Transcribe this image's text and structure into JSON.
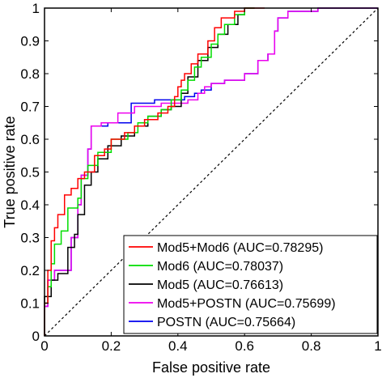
{
  "chart_data": {
    "type": "line",
    "xlabel": "False positive rate",
    "ylabel": "True positive rate",
    "xlim": [
      0,
      1
    ],
    "ylim": [
      0,
      1
    ],
    "grid": false,
    "legend_position": "bottom-right",
    "xticks": [
      "0",
      "0.2",
      "0.4",
      "0.6",
      "0.8",
      "1"
    ],
    "yticks": [
      "0",
      "0.1",
      "0.2",
      "0.3",
      "0.4",
      "0.5",
      "0.6",
      "0.7",
      "0.8",
      "0.9",
      "1"
    ],
    "reference_line": {
      "style": "dashed",
      "color": "#000000",
      "from": [
        0,
        0
      ],
      "to": [
        1,
        1
      ]
    },
    "series": [
      {
        "name": "Mod5+Mod6 (AUC=0.78295)",
        "color": "#ff0000",
        "points": [
          [
            0,
            0
          ],
          [
            0,
            0.1
          ],
          [
            0.01,
            0.1
          ],
          [
            0.01,
            0.2
          ],
          [
            0.02,
            0.2
          ],
          [
            0.02,
            0.29
          ],
          [
            0.03,
            0.29
          ],
          [
            0.03,
            0.33
          ],
          [
            0.04,
            0.33
          ],
          [
            0.04,
            0.37
          ],
          [
            0.06,
            0.37
          ],
          [
            0.06,
            0.43
          ],
          [
            0.08,
            0.43
          ],
          [
            0.08,
            0.45
          ],
          [
            0.1,
            0.45
          ],
          [
            0.1,
            0.48
          ],
          [
            0.12,
            0.48
          ],
          [
            0.12,
            0.5
          ],
          [
            0.15,
            0.5
          ],
          [
            0.15,
            0.55
          ],
          [
            0.18,
            0.55
          ],
          [
            0.18,
            0.57
          ],
          [
            0.2,
            0.57
          ],
          [
            0.2,
            0.6
          ],
          [
            0.24,
            0.6
          ],
          [
            0.24,
            0.62
          ],
          [
            0.27,
            0.62
          ],
          [
            0.27,
            0.64
          ],
          [
            0.3,
            0.64
          ],
          [
            0.3,
            0.66
          ],
          [
            0.34,
            0.66
          ],
          [
            0.34,
            0.68
          ],
          [
            0.37,
            0.68
          ],
          [
            0.37,
            0.7
          ],
          [
            0.39,
            0.7
          ],
          [
            0.39,
            0.73
          ],
          [
            0.4,
            0.73
          ],
          [
            0.4,
            0.76
          ],
          [
            0.41,
            0.76
          ],
          [
            0.41,
            0.78
          ],
          [
            0.42,
            0.78
          ],
          [
            0.42,
            0.8
          ],
          [
            0.44,
            0.8
          ],
          [
            0.44,
            0.83
          ],
          [
            0.46,
            0.83
          ],
          [
            0.46,
            0.86
          ],
          [
            0.49,
            0.86
          ],
          [
            0.49,
            0.9
          ],
          [
            0.51,
            0.9
          ],
          [
            0.51,
            0.94
          ],
          [
            0.53,
            0.94
          ],
          [
            0.53,
            0.97
          ],
          [
            0.57,
            0.97
          ],
          [
            0.57,
            0.99
          ],
          [
            0.6,
            0.99
          ],
          [
            0.6,
            1
          ],
          [
            0.66,
            1
          ]
        ]
      },
      {
        "name": "Mod6 (AUC=0.78037)",
        "color": "#00dd00",
        "points": [
          [
            0,
            0
          ],
          [
            0,
            0.1
          ],
          [
            0.01,
            0.1
          ],
          [
            0.01,
            0.15
          ],
          [
            0.02,
            0.15
          ],
          [
            0.02,
            0.22
          ],
          [
            0.03,
            0.22
          ],
          [
            0.03,
            0.28
          ],
          [
            0.05,
            0.28
          ],
          [
            0.05,
            0.32
          ],
          [
            0.07,
            0.32
          ],
          [
            0.07,
            0.39
          ],
          [
            0.1,
            0.39
          ],
          [
            0.1,
            0.42
          ],
          [
            0.11,
            0.42
          ],
          [
            0.11,
            0.48
          ],
          [
            0.13,
            0.48
          ],
          [
            0.13,
            0.52
          ],
          [
            0.16,
            0.52
          ],
          [
            0.16,
            0.56
          ],
          [
            0.2,
            0.56
          ],
          [
            0.2,
            0.6
          ],
          [
            0.25,
            0.6
          ],
          [
            0.25,
            0.62
          ],
          [
            0.28,
            0.62
          ],
          [
            0.28,
            0.65
          ],
          [
            0.31,
            0.65
          ],
          [
            0.31,
            0.67
          ],
          [
            0.35,
            0.67
          ],
          [
            0.35,
            0.69
          ],
          [
            0.38,
            0.69
          ],
          [
            0.38,
            0.72
          ],
          [
            0.41,
            0.72
          ],
          [
            0.41,
            0.75
          ],
          [
            0.43,
            0.75
          ],
          [
            0.43,
            0.78
          ],
          [
            0.45,
            0.78
          ],
          [
            0.45,
            0.82
          ],
          [
            0.47,
            0.82
          ],
          [
            0.47,
            0.85
          ],
          [
            0.5,
            0.85
          ],
          [
            0.5,
            0.89
          ],
          [
            0.52,
            0.89
          ],
          [
            0.52,
            0.92
          ],
          [
            0.54,
            0.92
          ],
          [
            0.54,
            0.95
          ],
          [
            0.57,
            0.95
          ],
          [
            0.57,
            0.98
          ],
          [
            0.6,
            0.98
          ],
          [
            0.6,
            1
          ],
          [
            0.63,
            1
          ]
        ]
      },
      {
        "name": "Mod5 (AUC=0.76613)",
        "color": "#000000",
        "points": [
          [
            0,
            0
          ],
          [
            0,
            0.12
          ],
          [
            0.02,
            0.12
          ],
          [
            0.02,
            0.17
          ],
          [
            0.04,
            0.17
          ],
          [
            0.04,
            0.19
          ],
          [
            0.07,
            0.19
          ],
          [
            0.07,
            0.27
          ],
          [
            0.09,
            0.27
          ],
          [
            0.09,
            0.31
          ],
          [
            0.1,
            0.31
          ],
          [
            0.1,
            0.37
          ],
          [
            0.12,
            0.37
          ],
          [
            0.12,
            0.46
          ],
          [
            0.14,
            0.46
          ],
          [
            0.14,
            0.5
          ],
          [
            0.16,
            0.5
          ],
          [
            0.16,
            0.54
          ],
          [
            0.19,
            0.54
          ],
          [
            0.19,
            0.58
          ],
          [
            0.23,
            0.58
          ],
          [
            0.23,
            0.61
          ],
          [
            0.27,
            0.61
          ],
          [
            0.27,
            0.64
          ],
          [
            0.31,
            0.64
          ],
          [
            0.31,
            0.67
          ],
          [
            0.35,
            0.67
          ],
          [
            0.35,
            0.69
          ],
          [
            0.38,
            0.69
          ],
          [
            0.38,
            0.7
          ],
          [
            0.41,
            0.7
          ],
          [
            0.41,
            0.74
          ],
          [
            0.43,
            0.74
          ],
          [
            0.43,
            0.79
          ],
          [
            0.46,
            0.79
          ],
          [
            0.46,
            0.84
          ],
          [
            0.49,
            0.84
          ],
          [
            0.49,
            0.88
          ],
          [
            0.52,
            0.88
          ],
          [
            0.52,
            0.92
          ],
          [
            0.55,
            0.92
          ],
          [
            0.55,
            0.95
          ],
          [
            0.58,
            0.95
          ],
          [
            0.58,
            0.98
          ],
          [
            0.6,
            0.98
          ],
          [
            0.6,
            1
          ],
          [
            0.63,
            1
          ]
        ]
      },
      {
        "name": "Mod5+POSTN (AUC=0.75699)",
        "color": "#ee00ee",
        "points": [
          [
            0,
            0
          ],
          [
            0,
            0.09
          ],
          [
            0.01,
            0.09
          ],
          [
            0.01,
            0.17
          ],
          [
            0.03,
            0.17
          ],
          [
            0.03,
            0.2
          ],
          [
            0.08,
            0.2
          ],
          [
            0.08,
            0.3
          ],
          [
            0.1,
            0.3
          ],
          [
            0.1,
            0.4
          ],
          [
            0.11,
            0.4
          ],
          [
            0.11,
            0.49
          ],
          [
            0.13,
            0.49
          ],
          [
            0.13,
            0.57
          ],
          [
            0.14,
            0.57
          ],
          [
            0.14,
            0.64
          ],
          [
            0.17,
            0.64
          ],
          [
            0.17,
            0.65
          ],
          [
            0.22,
            0.65
          ],
          [
            0.22,
            0.68
          ],
          [
            0.27,
            0.68
          ],
          [
            0.27,
            0.7
          ],
          [
            0.35,
            0.7
          ],
          [
            0.35,
            0.71
          ],
          [
            0.43,
            0.71
          ],
          [
            0.43,
            0.72
          ],
          [
            0.46,
            0.72
          ],
          [
            0.46,
            0.74
          ],
          [
            0.48,
            0.74
          ],
          [
            0.48,
            0.76
          ],
          [
            0.5,
            0.76
          ],
          [
            0.5,
            0.77
          ],
          [
            0.54,
            0.77
          ],
          [
            0.54,
            0.78
          ],
          [
            0.6,
            0.78
          ],
          [
            0.6,
            0.8
          ],
          [
            0.64,
            0.8
          ],
          [
            0.64,
            0.84
          ],
          [
            0.67,
            0.84
          ],
          [
            0.67,
            0.86
          ],
          [
            0.69,
            0.86
          ],
          [
            0.69,
            0.93
          ],
          [
            0.7,
            0.93
          ],
          [
            0.7,
            0.97
          ],
          [
            0.73,
            0.97
          ],
          [
            0.73,
            0.99
          ],
          [
            0.82,
            0.99
          ],
          [
            0.82,
            1
          ],
          [
            1,
            1
          ]
        ]
      },
      {
        "name": "POSTN (AUC=0.75664)",
        "color": "#0000ee",
        "points": [
          [
            0,
            0
          ],
          [
            0,
            0.09
          ],
          [
            0.01,
            0.09
          ],
          [
            0.01,
            0.17
          ],
          [
            0.03,
            0.17
          ],
          [
            0.03,
            0.2
          ],
          [
            0.08,
            0.2
          ],
          [
            0.08,
            0.3
          ],
          [
            0.1,
            0.3
          ],
          [
            0.1,
            0.4
          ],
          [
            0.11,
            0.4
          ],
          [
            0.11,
            0.49
          ],
          [
            0.13,
            0.49
          ],
          [
            0.13,
            0.57
          ],
          [
            0.14,
            0.57
          ],
          [
            0.14,
            0.64
          ],
          [
            0.19,
            0.64
          ],
          [
            0.19,
            0.65
          ],
          [
            0.26,
            0.65
          ],
          [
            0.26,
            0.71
          ],
          [
            0.33,
            0.71
          ],
          [
            0.33,
            0.72
          ],
          [
            0.42,
            0.72
          ],
          [
            0.42,
            0.73
          ],
          [
            0.45,
            0.73
          ],
          [
            0.45,
            0.74
          ],
          [
            0.47,
            0.74
          ],
          [
            0.47,
            0.75
          ],
          [
            0.5,
            0.75
          ],
          [
            0.5,
            0.77
          ],
          [
            0.54,
            0.77
          ],
          [
            0.54,
            0.78
          ],
          [
            0.6,
            0.78
          ],
          [
            0.6,
            0.8
          ],
          [
            0.64,
            0.8
          ],
          [
            0.64,
            0.84
          ],
          [
            0.67,
            0.84
          ],
          [
            0.67,
            0.86
          ],
          [
            0.69,
            0.86
          ],
          [
            0.69,
            0.93
          ],
          [
            0.7,
            0.93
          ],
          [
            0.7,
            0.97
          ],
          [
            0.73,
            0.97
          ],
          [
            0.73,
            0.99
          ],
          [
            0.82,
            0.99
          ],
          [
            0.82,
            1
          ],
          [
            1,
            1
          ]
        ]
      }
    ]
  }
}
